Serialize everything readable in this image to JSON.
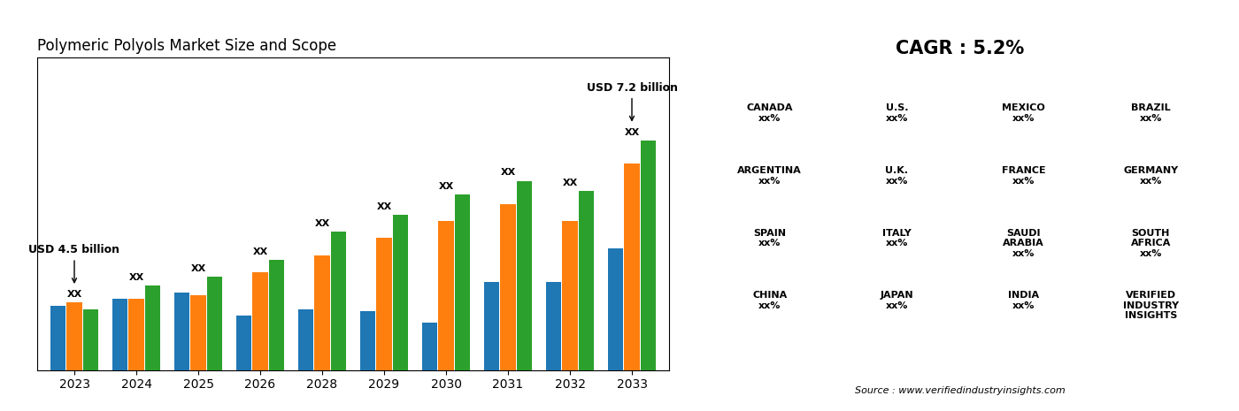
{
  "chart_data": {
    "type": "bar",
    "title": "Polymeric Polyols Market Size and Scope",
    "categories": [
      "2023",
      "2024",
      "2025",
      "2026",
      "2028",
      "2029",
      "2030",
      "2031",
      "2032",
      "2033"
    ],
    "series": [
      {
        "values": [
          0.38,
          0.42,
          0.46,
          0.32,
          0.36,
          0.35,
          0.28,
          0.52,
          0.52,
          0.72
        ]
      },
      {
        "values": [
          0.4,
          0.42,
          0.44,
          0.58,
          0.68,
          0.78,
          0.88,
          0.98,
          0.88,
          1.22
        ]
      },
      {
        "values": [
          0.36,
          0.5,
          0.55,
          0.65,
          0.82,
          0.92,
          1.04,
          1.12,
          1.06,
          1.36
        ]
      }
    ],
    "ylim": [
      0,
      1.85
    ],
    "yticks": [],
    "tick_labels": "x",
    "grid": false,
    "annotations": [
      {
        "text": "XX",
        "x": "2023"
      },
      {
        "text": "XX",
        "x": "2024"
      },
      {
        "text": "XX",
        "x": "2025"
      },
      {
        "text": "XX",
        "x": "2026"
      },
      {
        "text": "XX",
        "x": "2028"
      },
      {
        "text": "XX",
        "x": "2029"
      },
      {
        "text": "XX",
        "x": "2030"
      },
      {
        "text": "XX",
        "x": "2031"
      },
      {
        "text": "XX",
        "x": "2032"
      },
      {
        "text": "XX",
        "x": "2033"
      },
      {
        "text": "USD 4.5 billion",
        "x": "2023"
      },
      {
        "text": "USD 7.2 billion",
        "x": "2033"
      },
      {
        "text": "CAGR : 5.2%"
      },
      {
        "text": "CANADA\nxx%"
      },
      {
        "text": "U.S.\nxx%"
      },
      {
        "text": "MEXICO\nxx%"
      },
      {
        "text": "BRAZIL\nxx%"
      },
      {
        "text": "ARGENTINA\nxx%"
      },
      {
        "text": "U.K.\nxx%"
      },
      {
        "text": "FRANCE\nxx%"
      },
      {
        "text": "GERMANY\nxx%"
      },
      {
        "text": "SPAIN\nxx%"
      },
      {
        "text": "ITALY\nxx%"
      },
      {
        "text": "SAUDI\nARABIA\nxx%"
      },
      {
        "text": "SOUTH\nAFRICA\nxx%"
      },
      {
        "text": "CHINA\nxx%"
      },
      {
        "text": "JAPAN\nxx%"
      },
      {
        "text": "INDIA\nxx%"
      },
      {
        "text": "VERIFIED\nINDUSTRY\nINSIGHTS"
      },
      {
        "text": "Source : www.verifiedindustryinsights.com"
      }
    ]
  }
}
